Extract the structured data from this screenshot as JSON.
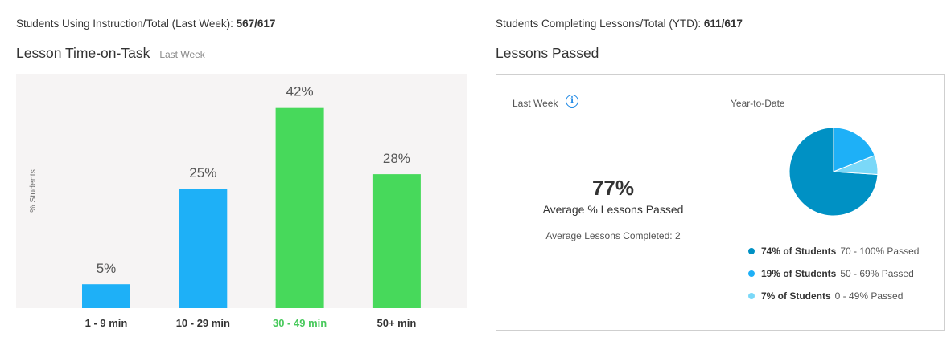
{
  "left_panel": {
    "stat_label": "Students Using Instruction/Total (Last Week):",
    "stat_value": "567/617",
    "title": "Lesson Time-on-Task",
    "subtitle": "Last Week"
  },
  "right_panel": {
    "stat_label": "Students Completing Lessons/Total (YTD):",
    "stat_value": "611/617",
    "title": "Lessons Passed",
    "last_week_label": "Last Week",
    "average_percent": "77%",
    "average_label": "Average % Lessons Passed",
    "average_completed_label": "Average Lessons Completed:",
    "average_completed_value": "2",
    "ytd_label": "Year-to-Date",
    "legend": [
      {
        "bold": "74% of Students",
        "text": "70 - 100% Passed",
        "color": "#0091c4"
      },
      {
        "bold": "19% of Students",
        "text": "50 - 69% Passed",
        "color": "#1eb0f7"
      },
      {
        "bold": "7% of Students",
        "text": "0 - 49% Passed",
        "color": "#7ad8f8"
      }
    ]
  },
  "chart_data": [
    {
      "type": "bar",
      "title": "Lesson Time-on-Task",
      "ylabel": "% Students",
      "categories": [
        "1 - 9 min",
        "10 - 29 min",
        "30 - 49 min",
        "50+ min"
      ],
      "values": [
        5,
        25,
        42,
        28
      ],
      "value_labels": [
        "5%",
        "25%",
        "42%",
        "28%"
      ],
      "bar_colors": [
        "#1eb0f7",
        "#1eb0f7",
        "#47d95b",
        "#47d95b"
      ],
      "category_label_colors": [
        "#333333",
        "#333333",
        "#47c95b",
        "#333333"
      ],
      "ylim": [
        0,
        50
      ],
      "background": "#f6f4f4"
    },
    {
      "type": "pie",
      "title": "Year-to-Date",
      "categories": [
        "70 - 100% Passed",
        "50 - 69% Passed",
        "0 - 49% Passed"
      ],
      "values": [
        74,
        19,
        7
      ],
      "colors": [
        "#0091c4",
        "#1eb0f7",
        "#7ad8f8"
      ]
    }
  ]
}
